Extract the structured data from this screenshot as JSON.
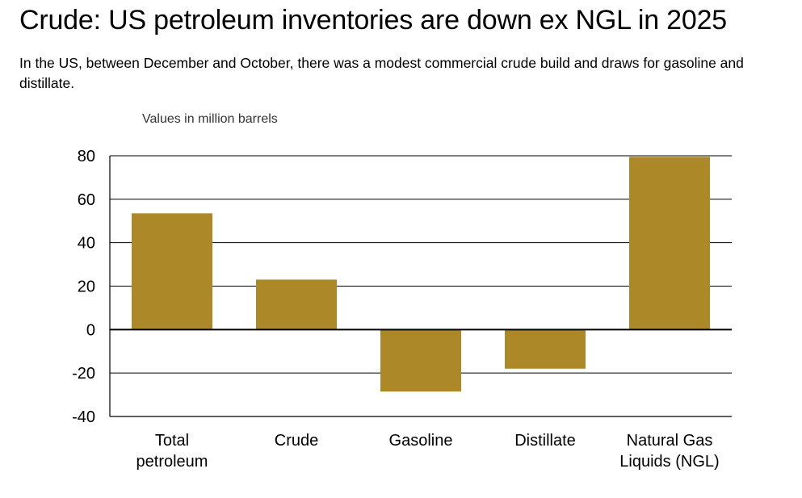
{
  "header": {
    "title": "Crude: US petroleum inventories are down ex NGL in 2025",
    "subtitle": "In the US, between December and October, there was a modest commercial crude build and draws for gasoline and distillate."
  },
  "chart_data": {
    "type": "bar",
    "units_label": "Values in million barrels",
    "categories": [
      [
        "Total",
        "petroleum"
      ],
      [
        "Crude"
      ],
      [
        "Gasoline"
      ],
      [
        "Distillate"
      ],
      [
        "Natural Gas",
        "Liquids (NGL)"
      ]
    ],
    "values": [
      53.5,
      23,
      -28.5,
      -18,
      79.5
    ],
    "ylim": [
      -40,
      80
    ],
    "yticks": [
      80,
      60,
      40,
      20,
      0,
      -20,
      -40
    ],
    "grid": true,
    "bar_color": "#ad8828",
    "title": "",
    "xlabel": "",
    "ylabel": ""
  }
}
